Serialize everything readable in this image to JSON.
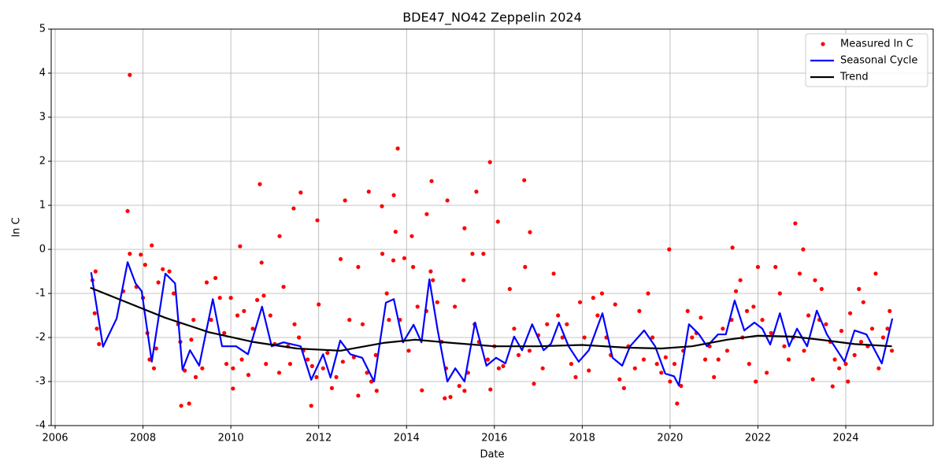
{
  "chart_data": {
    "type": "scatter-line",
    "title": "BDE47_NO42 Zeppelin 2024",
    "xlabel": "Date",
    "ylabel": "ln C",
    "xlim": [
      2005.91,
      2025.99
    ],
    "ylim": [
      -4,
      5
    ],
    "xticks": [
      2006,
      2008,
      2010,
      2012,
      2014,
      2016,
      2018,
      2020,
      2022,
      2024
    ],
    "yticks": [
      -4,
      -3,
      -2,
      -1,
      0,
      1,
      2,
      3,
      4,
      5
    ],
    "grid": true,
    "legend": "upper right",
    "series": [
      {
        "name": "Measured ln C",
        "color": "#ff0000",
        "kind": "points",
        "x": [
          2007.7,
          2007.65,
          2008.2,
          2010.66,
          2011.59,
          2011.43,
          2012.6,
          2013.14,
          2013.8,
          2013.71,
          2014.57,
          2014.93,
          2015.59,
          2015.9,
          2016.08,
          2016.68,
          2019.98,
          2022.85,
          2023.03,
          2021.42,
          2010.21,
          2011.11,
          2011.97,
          2015.32,
          2016.81,
          2024.68,
          2013.44,
          2014.12,
          2014.46,
          2008.87,
          2011.83,
          2014.87,
          2020.16,
          2013.32,
          2012.9,
          2010.05,
          2009.05,
          2015.32,
          2015.91,
          2023.7,
          2006.85,
          2006.9,
          2006.95,
          2007.0,
          2006.92,
          2007.55,
          2007.7,
          2007.85,
          2007.95,
          2008.0,
          2008.05,
          2008.1,
          2008.15,
          2008.25,
          2008.3,
          2008.35,
          2008.45,
          2008.6,
          2008.7,
          2008.8,
          2008.85,
          2008.95,
          2009.1,
          2009.15,
          2009.2,
          2009.35,
          2009.45,
          2009.55,
          2009.65,
          2009.75,
          2009.85,
          2009.9,
          2010.0,
          2010.05,
          2010.15,
          2010.25,
          2010.3,
          2010.4,
          2010.5,
          2010.6,
          2010.7,
          2010.75,
          2010.8,
          2010.9,
          2011.0,
          2011.1,
          2011.2,
          2011.3,
          2011.35,
          2011.45,
          2011.55,
          2011.65,
          2011.75,
          2011.85,
          2011.95,
          2012.0,
          2012.1,
          2012.2,
          2012.3,
          2012.4,
          2012.5,
          2012.55,
          2012.7,
          2012.8,
          2012.9,
          2013.0,
          2013.1,
          2013.2,
          2013.3,
          2013.45,
          2013.55,
          2013.6,
          2013.7,
          2013.75,
          2013.85,
          2013.95,
          2014.05,
          2014.15,
          2014.25,
          2014.35,
          2014.45,
          2014.55,
          2014.6,
          2014.7,
          2014.8,
          2014.9,
          2015.0,
          2015.1,
          2015.2,
          2015.3,
          2015.4,
          2015.5,
          2015.55,
          2015.65,
          2015.75,
          2015.85,
          2016.0,
          2016.1,
          2016.2,
          2016.35,
          2016.45,
          2016.55,
          2016.7,
          2016.8,
          2016.9,
          2017.0,
          2017.1,
          2017.2,
          2017.35,
          2017.45,
          2017.55,
          2017.65,
          2017.75,
          2017.85,
          2017.95,
          2018.05,
          2018.15,
          2018.25,
          2018.35,
          2018.45,
          2018.55,
          2018.65,
          2018.75,
          2018.85,
          2018.95,
          2019.05,
          2019.2,
          2019.3,
          2019.4,
          2019.5,
          2019.6,
          2019.7,
          2019.8,
          2019.9,
          2020.0,
          2020.1,
          2020.25,
          2020.3,
          2020.4,
          2020.5,
          2020.6,
          2020.7,
          2020.8,
          2020.9,
          2021.0,
          2021.1,
          2021.2,
          2021.3,
          2021.4,
          2021.5,
          2021.6,
          2021.65,
          2021.75,
          2021.8,
          2021.9,
          2021.95,
          2022.0,
          2022.1,
          2022.2,
          2022.3,
          2022.4,
          2022.5,
          2022.6,
          2022.7,
          2022.8,
          2022.95,
          2023.05,
          2023.15,
          2023.25,
          2023.3,
          2023.4,
          2023.45,
          2023.55,
          2023.65,
          2023.75,
          2023.85,
          2023.9,
          2024.0,
          2024.05,
          2024.1,
          2024.2,
          2024.3,
          2024.35,
          2024.4,
          2024.5,
          2024.6,
          2024.75,
          2024.85,
          2025.0,
          2025.05,
          2024.95
        ],
        "values": [
          3.96,
          0.87,
          0.09,
          1.48,
          1.29,
          0.93,
          1.11,
          1.31,
          2.29,
          1.23,
          1.55,
          1.11,
          1.31,
          1.98,
          0.63,
          1.57,
          0.0,
          0.59,
          0.0,
          0.04,
          0.07,
          0.3,
          0.66,
          0.48,
          0.39,
          -0.55,
          0.98,
          0.3,
          0.8,
          -3.55,
          -3.55,
          -3.38,
          -3.5,
          -3.21,
          -3.32,
          -3.16,
          -3.5,
          -3.21,
          -3.18,
          -3.11,
          -0.7,
          -1.45,
          -1.8,
          -2.15,
          -0.5,
          -0.95,
          -0.1,
          -0.85,
          -0.12,
          -1.1,
          -0.35,
          -1.9,
          -2.5,
          -2.7,
          -2.25,
          -0.75,
          -0.45,
          -0.5,
          -1.0,
          -1.7,
          -2.1,
          -2.75,
          -2.05,
          -1.6,
          -2.9,
          -2.7,
          -0.75,
          -1.6,
          -0.65,
          -1.1,
          -1.9,
          -2.6,
          -1.1,
          -2.7,
          -1.5,
          -2.5,
          -1.4,
          -2.85,
          -1.8,
          -1.15,
          -0.3,
          -1.05,
          -2.6,
          -1.5,
          -2.15,
          -2.8,
          -0.85,
          -2.2,
          -2.6,
          -1.7,
          -2.0,
          -2.3,
          -2.5,
          -2.65,
          -2.9,
          -1.25,
          -2.7,
          -2.35,
          -3.15,
          -2.9,
          -0.22,
          -2.55,
          -1.6,
          -2.45,
          -0.4,
          -1.7,
          -2.8,
          -3.0,
          -2.4,
          -0.1,
          -1.0,
          -1.6,
          -0.25,
          0.4,
          -1.6,
          -0.2,
          -2.3,
          -0.4,
          -1.3,
          -3.2,
          -1.4,
          -0.5,
          -0.7,
          -1.2,
          -2.1,
          -2.7,
          -3.35,
          -1.3,
          -3.1,
          -0.7,
          -2.8,
          -0.1,
          -1.7,
          -2.1,
          -0.1,
          -2.5,
          -2.2,
          -2.7,
          -2.65,
          -0.9,
          -1.8,
          -2.4,
          -0.4,
          -2.3,
          -3.05,
          -1.95,
          -2.7,
          -1.7,
          -0.55,
          -1.5,
          -2.0,
          -1.7,
          -2.6,
          -2.9,
          -1.2,
          -2.0,
          -2.75,
          -1.1,
          -1.5,
          -1.0,
          -2.0,
          -2.4,
          -1.25,
          -2.95,
          -3.15,
          -2.2,
          -2.7,
          -1.4,
          -2.5,
          -1.0,
          -2.0,
          -2.6,
          -2.8,
          -2.45,
          -3.0,
          -2.6,
          -3.1,
          -2.3,
          -1.4,
          -2.0,
          -1.9,
          -1.55,
          -2.5,
          -2.2,
          -2.9,
          -2.5,
          -1.8,
          -2.3,
          -1.6,
          -0.95,
          -0.7,
          -2.0,
          -1.4,
          -2.6,
          -1.3,
          -3.0,
          -0.4,
          -1.6,
          -2.8,
          -1.9,
          -0.4,
          -1.0,
          -2.2,
          -2.5,
          -2.0,
          -0.55,
          -2.3,
          -1.5,
          -2.95,
          -0.7,
          -1.6,
          -0.9,
          -1.7,
          -2.1,
          -2.5,
          -2.7,
          -1.85,
          -2.6,
          -3.0,
          -1.45,
          -2.4,
          -0.9,
          -2.1,
          -1.2,
          -2.2,
          -1.8,
          -2.7,
          -2.0,
          -1.4,
          -2.3,
          -1.8
        ]
      },
      {
        "name": "Seasonal Cycle",
        "color": "#0000ff",
        "kind": "line",
        "x": [
          2006.82,
          2007.09,
          2007.4,
          2007.65,
          2007.83,
          2007.97,
          2008.2,
          2008.51,
          2008.73,
          2008.9,
          2009.07,
          2009.28,
          2009.59,
          2009.8,
          2010.12,
          2010.39,
          2010.71,
          2010.93,
          2011.2,
          2011.59,
          2011.83,
          2012.1,
          2012.27,
          2012.49,
          2012.72,
          2012.99,
          2013.26,
          2013.53,
          2013.71,
          2013.92,
          2014.16,
          2014.34,
          2014.52,
          2014.71,
          2014.93,
          2015.11,
          2015.32,
          2015.56,
          2015.82,
          2016.04,
          2016.25,
          2016.45,
          2016.63,
          2016.86,
          2017.12,
          2017.29,
          2017.47,
          2017.69,
          2017.92,
          2018.15,
          2018.46,
          2018.69,
          2018.91,
          2019.09,
          2019.41,
          2019.66,
          2019.89,
          2020.09,
          2020.2,
          2020.43,
          2020.66,
          2020.84,
          2021.09,
          2021.27,
          2021.47,
          2021.69,
          2021.92,
          2022.1,
          2022.28,
          2022.5,
          2022.71,
          2022.89,
          2023.12,
          2023.34,
          2023.57,
          2023.97,
          2024.2,
          2024.47,
          2024.82,
          2025.06
        ],
        "values": [
          -0.52,
          -2.21,
          -1.57,
          -0.29,
          -0.77,
          -0.95,
          -2.55,
          -0.55,
          -0.77,
          -2.73,
          -2.29,
          -2.64,
          -1.13,
          -2.2,
          -2.2,
          -2.38,
          -1.3,
          -2.2,
          -2.11,
          -2.2,
          -2.96,
          -2.38,
          -2.91,
          -2.07,
          -2.38,
          -2.46,
          -3.0,
          -1.21,
          -1.13,
          -2.11,
          -1.71,
          -2.11,
          -0.68,
          -1.84,
          -3.0,
          -2.7,
          -3.0,
          -1.66,
          -2.64,
          -2.46,
          -2.59,
          -1.98,
          -2.29,
          -1.7,
          -2.29,
          -2.14,
          -1.66,
          -2.2,
          -2.55,
          -2.29,
          -1.45,
          -2.46,
          -2.64,
          -2.2,
          -1.84,
          -2.2,
          -2.82,
          -2.88,
          -3.09,
          -1.7,
          -1.93,
          -2.2,
          -1.93,
          -1.93,
          -1.16,
          -1.84,
          -1.66,
          -1.8,
          -2.16,
          -1.45,
          -2.2,
          -1.8,
          -2.2,
          -1.39,
          -1.93,
          -2.55,
          -1.84,
          -1.93,
          -2.59,
          -1.57
        ]
      },
      {
        "name": "Trend",
        "color": "#000000",
        "kind": "line",
        "x": [
          2006.8,
          2007.5,
          2008.5,
          2009.5,
          2010.5,
          2011.5,
          2012.5,
          2013.5,
          2014.2,
          2015.0,
          2016.0,
          2017.0,
          2018.0,
          2019.0,
          2019.8,
          2020.5,
          2021.3,
          2022.0,
          2022.8,
          2023.5,
          2024.2,
          2025.05
        ],
        "values": [
          -0.87,
          -1.15,
          -1.55,
          -1.88,
          -2.1,
          -2.25,
          -2.3,
          -2.12,
          -2.05,
          -2.12,
          -2.2,
          -2.2,
          -2.17,
          -2.23,
          -2.25,
          -2.2,
          -2.05,
          -1.96,
          -1.98,
          -2.06,
          -2.15,
          -2.2
        ]
      }
    ]
  }
}
